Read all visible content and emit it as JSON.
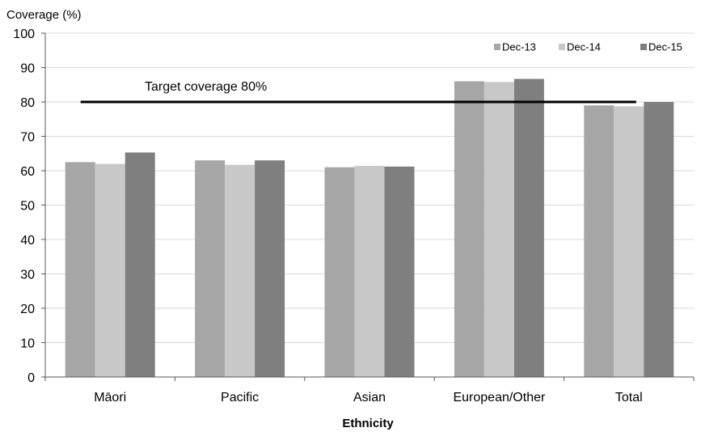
{
  "chart_data": {
    "type": "bar",
    "ylabel": "Coverage (%)",
    "xlabel": "Ethnicity",
    "categories": [
      "Māori",
      "Pacific",
      "Asian",
      "European/Other",
      "Total"
    ],
    "series": [
      {
        "name": "Dec-13",
        "values": [
          62.5,
          63.0,
          61.0,
          86.0,
          79.0
        ],
        "color": "#a6a6a6"
      },
      {
        "name": "Dec-14",
        "values": [
          62.0,
          61.7,
          61.4,
          85.8,
          78.7
        ],
        "color": "#c8c8c8"
      },
      {
        "name": "Dec-15",
        "values": [
          65.3,
          63.0,
          61.2,
          86.7,
          80.0
        ],
        "color": "#7f7f7f"
      }
    ],
    "ylim": [
      0,
      100
    ],
    "yticks": [
      0,
      10,
      20,
      30,
      40,
      50,
      60,
      70,
      80,
      90,
      100
    ],
    "grid": true,
    "legend_position": "top-right",
    "target": {
      "value": 80,
      "label": "Target coverage 80%",
      "color": "#000000"
    }
  }
}
